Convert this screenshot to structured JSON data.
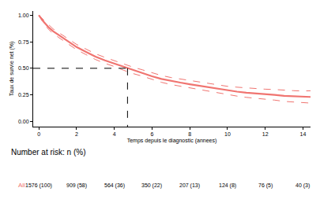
{
  "chart_data": {
    "type": "line",
    "x_label": "Temps depuis le diagnostic (annees)",
    "y_label": "Taux de survie net (%)",
    "x": [
      0,
      0.25,
      0.5,
      0.75,
      1,
      1.5,
      2,
      2.5,
      3,
      3.5,
      4,
      4.5,
      5,
      5.5,
      6,
      6.5,
      7,
      7.5,
      8,
      8.5,
      9,
      9.5,
      10,
      10.5,
      11,
      11.5,
      12,
      12.5,
      13,
      13.5,
      14,
      14.4
    ],
    "series": [
      {
        "name": "All",
        "color": "#f07470",
        "values": [
          1.0,
          0.94,
          0.89,
          0.85,
          0.82,
          0.76,
          0.7,
          0.655,
          0.61,
          0.575,
          0.545,
          0.51,
          0.48,
          0.455,
          0.425,
          0.4,
          0.38,
          0.365,
          0.35,
          0.335,
          0.32,
          0.305,
          0.29,
          0.28,
          0.27,
          0.265,
          0.255,
          0.25,
          0.24,
          0.235,
          0.23,
          0.23
        ],
        "lower": [
          1.0,
          0.925,
          0.87,
          0.828,
          0.797,
          0.736,
          0.675,
          0.629,
          0.583,
          0.547,
          0.517,
          0.481,
          0.45,
          0.425,
          0.394,
          0.368,
          0.347,
          0.331,
          0.315,
          0.299,
          0.283,
          0.267,
          0.25,
          0.238,
          0.226,
          0.219,
          0.207,
          0.2,
          0.188,
          0.181,
          0.174,
          0.172
        ],
        "upper": [
          1.0,
          0.955,
          0.91,
          0.872,
          0.843,
          0.784,
          0.725,
          0.681,
          0.637,
          0.603,
          0.573,
          0.539,
          0.51,
          0.485,
          0.456,
          0.432,
          0.413,
          0.399,
          0.385,
          0.371,
          0.357,
          0.343,
          0.33,
          0.322,
          0.314,
          0.311,
          0.303,
          0.3,
          0.292,
          0.289,
          0.286,
          0.288
        ]
      }
    ],
    "median_survival": {
      "x": 4.7,
      "y": 0.5
    },
    "xlim": [
      -0.3,
      14.4
    ],
    "xticks": [
      0,
      2,
      4,
      6,
      8,
      10,
      12,
      14
    ],
    "ylim": [
      -0.05,
      1.04
    ],
    "yticks": [
      {
        "value": 0,
        "label": "0.00"
      },
      {
        "value": 0.25,
        "label": "0.25"
      },
      {
        "value": 0.5,
        "label": "0.50"
      },
      {
        "value": 0.75,
        "label": "0.75"
      },
      {
        "value": 1,
        "label": "1.00"
      }
    ],
    "grid": false,
    "risk_table": {
      "title": "Number at risk: n (%)",
      "group": "All",
      "times": [
        0,
        2,
        4,
        6,
        8,
        10,
        12,
        14
      ],
      "labels": [
        "1576 (100)",
        "909 (58)",
        "564 (36)",
        "350 (22)",
        "207 (13)",
        "124 (8)",
        "76 (5)",
        "40 (3)"
      ]
    }
  }
}
